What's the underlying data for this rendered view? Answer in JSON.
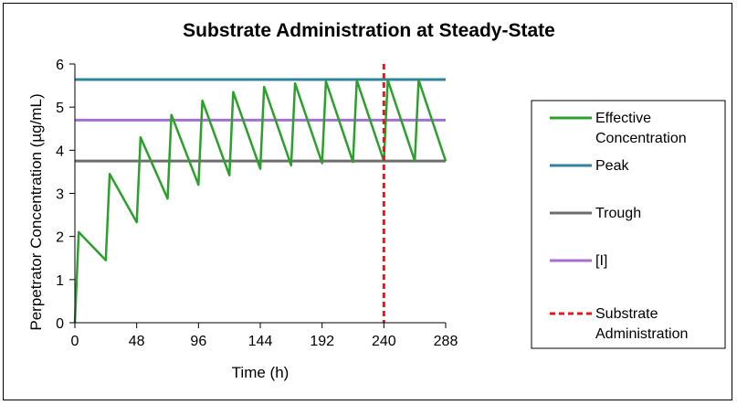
{
  "chart_data": {
    "type": "line",
    "title": "Substrate Administration at Steady-State",
    "xlabel": "Time (h)",
    "ylabel": "Perpetrator Concentration (µg/mL)",
    "xlim": [
      0,
      288
    ],
    "ylim": [
      0,
      6
    ],
    "xticks": [
      0,
      48,
      96,
      144,
      192,
      240,
      288
    ],
    "yticks": [
      0,
      1,
      2,
      3,
      4,
      5,
      6
    ],
    "grid": false,
    "legend_position": "right",
    "series": [
      {
        "name": "Effective Concentration",
        "color": "#2ca02c",
        "style": "solid",
        "x": [
          0,
          3,
          24,
          27,
          48,
          51,
          72,
          75,
          96,
          99,
          120,
          123,
          144,
          147,
          168,
          171,
          192,
          195,
          216,
          219,
          240,
          243,
          264,
          267,
          288
        ],
        "y": [
          0,
          2.1,
          1.45,
          3.45,
          2.33,
          4.3,
          2.88,
          4.82,
          3.2,
          5.15,
          3.42,
          5.35,
          3.57,
          5.47,
          3.65,
          5.55,
          3.7,
          5.6,
          3.73,
          5.62,
          3.75,
          5.63,
          3.75,
          5.63,
          3.75
        ]
      },
      {
        "name": "Peak",
        "color": "#31849b",
        "style": "solid",
        "y_const": 5.64
      },
      {
        "name": "Trough",
        "color": "#6d6d6d",
        "style": "solid",
        "y_const": 3.75
      },
      {
        "name": "[I]",
        "color": "#a66fd1",
        "style": "solid",
        "y_const": 4.7
      },
      {
        "name": "Substrate Administration",
        "color": "#e41a1c",
        "style": "dashed",
        "x_const": 240
      }
    ],
    "legend": [
      {
        "line1": "Effective",
        "line2": "Concentration"
      },
      {
        "line1": "Peak",
        "line2": ""
      },
      {
        "line1": "Trough",
        "line2": ""
      },
      {
        "line1": "[I]",
        "line2": ""
      },
      {
        "line1": "Substrate",
        "line2": "Administration"
      }
    ]
  }
}
